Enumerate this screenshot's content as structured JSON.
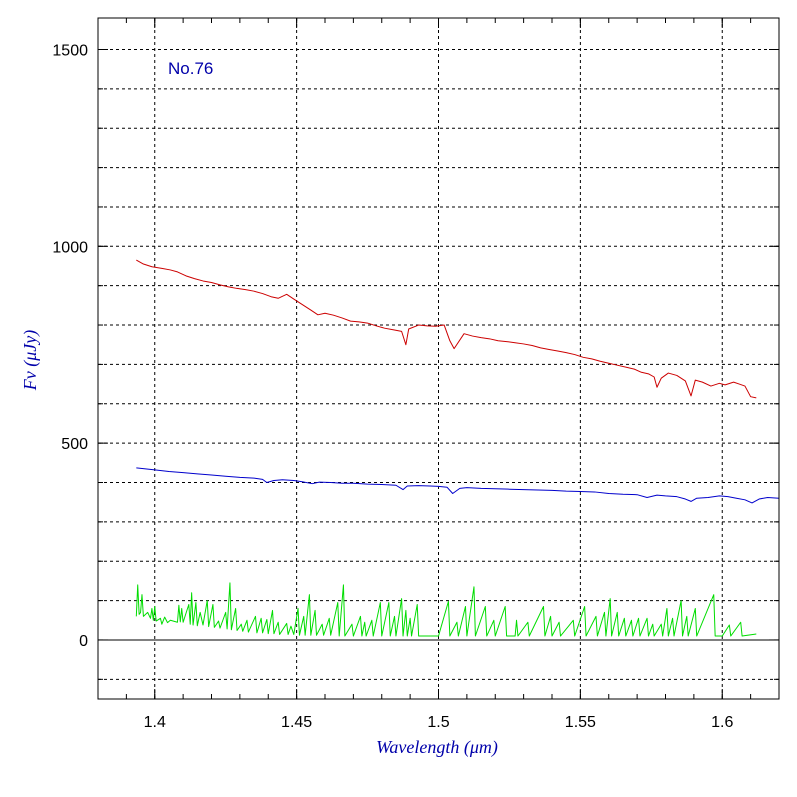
{
  "chart_data": {
    "type": "line",
    "annotation": "No.76",
    "xlabel": "Wavelength (μm)",
    "ylabel": "Fν (μJy)",
    "xlim": [
      1.38,
      1.62
    ],
    "ylim": [
      -150,
      1580
    ],
    "x_ticks": [
      1.4,
      1.45,
      1.5,
      1.55,
      1.6
    ],
    "x_tick_labels": [
      "1.4",
      "1.45",
      "1.5",
      "1.55",
      "1.6"
    ],
    "y_ticks": [
      0,
      500,
      1000,
      1500
    ],
    "y_tick_labels": [
      "0",
      "500",
      "1000",
      "1500"
    ],
    "y_gridlines": [
      -100,
      100,
      200,
      300,
      400,
      600,
      700,
      800,
      900,
      1100,
      1200,
      1300,
      1400,
      1500
    ],
    "grid": true,
    "colors": {
      "observed": "#cc0000",
      "model": "#0000cc",
      "sky": "#00dd00",
      "text_accent": "#0000aa"
    },
    "series": [
      {
        "color": "#cc0000",
        "points": [
          [
            1.3935,
            965
          ],
          [
            1.396,
            955
          ],
          [
            1.399,
            948
          ],
          [
            1.4025,
            944
          ],
          [
            1.4055,
            940
          ],
          [
            1.408,
            935
          ],
          [
            1.411,
            925
          ],
          [
            1.414,
            918
          ],
          [
            1.417,
            912
          ],
          [
            1.42,
            908
          ],
          [
            1.423,
            902
          ],
          [
            1.426,
            897
          ],
          [
            1.429,
            893
          ],
          [
            1.432,
            890
          ],
          [
            1.435,
            886
          ],
          [
            1.438,
            880
          ],
          [
            1.441,
            872
          ],
          [
            1.4435,
            868
          ],
          [
            1.4465,
            878
          ],
          [
            1.449,
            866
          ],
          [
            1.452,
            852
          ],
          [
            1.455,
            838
          ],
          [
            1.4575,
            826
          ],
          [
            1.46,
            830
          ],
          [
            1.463,
            825
          ],
          [
            1.466,
            818
          ],
          [
            1.469,
            810
          ],
          [
            1.472,
            808
          ],
          [
            1.475,
            805
          ],
          [
            1.478,
            798
          ],
          [
            1.481,
            792
          ],
          [
            1.484,
            788
          ],
          [
            1.487,
            784
          ],
          [
            1.4885,
            750
          ],
          [
            1.4895,
            790
          ],
          [
            1.493,
            800
          ],
          [
            1.496,
            798
          ],
          [
            1.499,
            797
          ],
          [
            1.502,
            800
          ],
          [
            1.504,
            760
          ],
          [
            1.5055,
            740
          ],
          [
            1.509,
            778
          ],
          [
            1.512,
            772
          ],
          [
            1.515,
            768
          ],
          [
            1.518,
            765
          ],
          [
            1.521,
            760
          ],
          [
            1.524,
            758
          ],
          [
            1.527,
            755
          ],
          [
            1.53,
            752
          ],
          [
            1.533,
            748
          ],
          [
            1.536,
            742
          ],
          [
            1.539,
            738
          ],
          [
            1.542,
            734
          ],
          [
            1.545,
            730
          ],
          [
            1.548,
            725
          ],
          [
            1.551,
            718
          ],
          [
            1.554,
            714
          ],
          [
            1.557,
            708
          ],
          [
            1.56,
            703
          ],
          [
            1.563,
            698
          ],
          [
            1.566,
            693
          ],
          [
            1.569,
            688
          ],
          [
            1.5715,
            680
          ],
          [
            1.574,
            676
          ],
          [
            1.576,
            668
          ],
          [
            1.577,
            642
          ],
          [
            1.5785,
            665
          ],
          [
            1.581,
            678
          ],
          [
            1.584,
            672
          ],
          [
            1.587,
            658
          ],
          [
            1.589,
            620
          ],
          [
            1.5905,
            660
          ],
          [
            1.593,
            655
          ],
          [
            1.596,
            645
          ],
          [
            1.599,
            652
          ],
          [
            1.601,
            648
          ],
          [
            1.604,
            655
          ],
          [
            1.606,
            650
          ],
          [
            1.608,
            645
          ],
          [
            1.61,
            618
          ],
          [
            1.612,
            615
          ]
        ]
      },
      {
        "color": "#0000cc",
        "points": [
          [
            1.3935,
            437
          ],
          [
            1.4,
            432
          ],
          [
            1.405,
            428
          ],
          [
            1.41,
            425
          ],
          [
            1.415,
            422
          ],
          [
            1.42,
            419
          ],
          [
            1.425,
            416
          ],
          [
            1.43,
            413
          ],
          [
            1.435,
            411
          ],
          [
            1.438,
            408
          ],
          [
            1.4395,
            400
          ],
          [
            1.442,
            405
          ],
          [
            1.445,
            407
          ],
          [
            1.449,
            405
          ],
          [
            1.452,
            402
          ],
          [
            1.4555,
            397
          ],
          [
            1.458,
            401
          ],
          [
            1.462,
            400
          ],
          [
            1.466,
            398
          ],
          [
            1.47,
            398
          ],
          [
            1.475,
            396
          ],
          [
            1.48,
            395
          ],
          [
            1.485,
            393
          ],
          [
            1.4875,
            382
          ],
          [
            1.489,
            391
          ],
          [
            1.493,
            392
          ],
          [
            1.497,
            391
          ],
          [
            1.5,
            390
          ],
          [
            1.503,
            388
          ],
          [
            1.505,
            372
          ],
          [
            1.5075,
            385
          ],
          [
            1.51,
            387
          ],
          [
            1.515,
            385
          ],
          [
            1.52,
            384
          ],
          [
            1.525,
            383
          ],
          [
            1.53,
            382
          ],
          [
            1.535,
            381
          ],
          [
            1.54,
            380
          ],
          [
            1.545,
            378
          ],
          [
            1.55,
            377
          ],
          [
            1.555,
            376
          ],
          [
            1.56,
            372
          ],
          [
            1.565,
            370
          ],
          [
            1.57,
            369
          ],
          [
            1.5735,
            362
          ],
          [
            1.577,
            368
          ],
          [
            1.58,
            366
          ],
          [
            1.584,
            364
          ],
          [
            1.587,
            358
          ],
          [
            1.589,
            352
          ],
          [
            1.591,
            360
          ],
          [
            1.595,
            362
          ],
          [
            1.599,
            366
          ],
          [
            1.602,
            364
          ],
          [
            1.605,
            360
          ],
          [
            1.608,
            356
          ],
          [
            1.6105,
            348
          ],
          [
            1.613,
            358
          ],
          [
            1.616,
            362
          ],
          [
            1.62,
            360
          ]
        ]
      },
      {
        "color": "#00dd00",
        "points": [
          [
            1.3935,
            60
          ],
          [
            1.394,
            140
          ],
          [
            1.3945,
            65
          ],
          [
            1.395,
            70
          ],
          [
            1.3955,
            115
          ],
          [
            1.396,
            60
          ],
          [
            1.3975,
            70
          ],
          [
            1.3985,
            55
          ],
          [
            1.399,
            80
          ],
          [
            1.3995,
            50
          ],
          [
            1.4,
            85
          ],
          [
            1.4005,
            48
          ],
          [
            1.402,
            55
          ],
          [
            1.4025,
            40
          ],
          [
            1.4035,
            58
          ],
          [
            1.4045,
            44
          ],
          [
            1.4055,
            50
          ],
          [
            1.408,
            45
          ],
          [
            1.4085,
            88
          ],
          [
            1.409,
            46
          ],
          [
            1.4095,
            80
          ],
          [
            1.41,
            45
          ],
          [
            1.412,
            90
          ],
          [
            1.4125,
            40
          ],
          [
            1.413,
            120
          ],
          [
            1.4135,
            38
          ],
          [
            1.4145,
            95
          ],
          [
            1.415,
            36
          ],
          [
            1.416,
            70
          ],
          [
            1.417,
            38
          ],
          [
            1.4185,
            100
          ],
          [
            1.419,
            34
          ],
          [
            1.4205,
            90
          ],
          [
            1.421,
            32
          ],
          [
            1.4225,
            48
          ],
          [
            1.423,
            30
          ],
          [
            1.425,
            70
          ],
          [
            1.4255,
            28
          ],
          [
            1.4265,
            145
          ],
          [
            1.427,
            26
          ],
          [
            1.4285,
            80
          ],
          [
            1.429,
            24
          ],
          [
            1.4305,
            40
          ],
          [
            1.431,
            22
          ],
          [
            1.4325,
            50
          ],
          [
            1.433,
            20
          ],
          [
            1.4355,
            60
          ],
          [
            1.436,
            18
          ],
          [
            1.4375,
            55
          ],
          [
            1.438,
            18
          ],
          [
            1.4395,
            52
          ],
          [
            1.44,
            16
          ],
          [
            1.4415,
            75
          ],
          [
            1.442,
            16
          ],
          [
            1.4435,
            45
          ],
          [
            1.444,
            14
          ],
          [
            1.4465,
            42
          ],
          [
            1.447,
            14
          ],
          [
            1.448,
            35
          ],
          [
            1.449,
            14
          ],
          [
            1.4505,
            80
          ],
          [
            1.451,
            12
          ],
          [
            1.4525,
            60
          ],
          [
            1.453,
            12
          ],
          [
            1.4545,
            115
          ],
          [
            1.455,
            12
          ],
          [
            1.4565,
            75
          ],
          [
            1.457,
            12
          ],
          [
            1.459,
            40
          ],
          [
            1.4595,
            12
          ],
          [
            1.4615,
            55
          ],
          [
            1.462,
            12
          ],
          [
            1.4645,
            95
          ],
          [
            1.465,
            10
          ],
          [
            1.4665,
            140
          ],
          [
            1.467,
            10
          ],
          [
            1.4695,
            40
          ],
          [
            1.47,
            10
          ],
          [
            1.4725,
            60
          ],
          [
            1.473,
            10
          ],
          [
            1.474,
            45
          ],
          [
            1.4745,
            10
          ],
          [
            1.4765,
            50
          ],
          [
            1.477,
            10
          ],
          [
            1.4795,
            95
          ],
          [
            1.48,
            10
          ],
          [
            1.4825,
            95
          ],
          [
            1.483,
            10
          ],
          [
            1.4845,
            60
          ],
          [
            1.485,
            10
          ],
          [
            1.487,
            105
          ],
          [
            1.4875,
            10
          ],
          [
            1.4885,
            75
          ],
          [
            1.489,
            10
          ],
          [
            1.49,
            55
          ],
          [
            1.4905,
            10
          ],
          [
            1.4925,
            90
          ],
          [
            1.493,
            10
          ],
          [
            1.5,
            10
          ],
          [
            1.5035,
            98
          ],
          [
            1.504,
            10
          ],
          [
            1.5065,
            45
          ],
          [
            1.507,
            10
          ],
          [
            1.5095,
            85
          ],
          [
            1.51,
            10
          ],
          [
            1.5125,
            135
          ],
          [
            1.513,
            10
          ],
          [
            1.5165,
            85
          ],
          [
            1.517,
            10
          ],
          [
            1.5195,
            50
          ],
          [
            1.52,
            10
          ],
          [
            1.5235,
            85
          ],
          [
            1.524,
            10
          ],
          [
            1.527,
            10
          ],
          [
            1.5275,
            50
          ],
          [
            1.528,
            10
          ],
          [
            1.5315,
            45
          ],
          [
            1.532,
            10
          ],
          [
            1.537,
            85
          ],
          [
            1.5375,
            10
          ],
          [
            1.5395,
            60
          ],
          [
            1.54,
            10
          ],
          [
            1.5425,
            45
          ],
          [
            1.543,
            10
          ],
          [
            1.5475,
            50
          ],
          [
            1.548,
            10
          ],
          [
            1.5515,
            85
          ],
          [
            1.552,
            10
          ],
          [
            1.5555,
            60
          ],
          [
            1.556,
            10
          ],
          [
            1.5585,
            70
          ],
          [
            1.559,
            10
          ],
          [
            1.5605,
            105
          ],
          [
            1.561,
            10
          ],
          [
            1.563,
            70
          ],
          [
            1.5635,
            10
          ],
          [
            1.5655,
            55
          ],
          [
            1.566,
            10
          ],
          [
            1.568,
            50
          ],
          [
            1.5685,
            10
          ],
          [
            1.5705,
            55
          ],
          [
            1.571,
            10
          ],
          [
            1.5735,
            55
          ],
          [
            1.574,
            10
          ],
          [
            1.5755,
            40
          ],
          [
            1.576,
            10
          ],
          [
            1.5785,
            40
          ],
          [
            1.579,
            10
          ],
          [
            1.5805,
            80
          ],
          [
            1.581,
            10
          ],
          [
            1.5825,
            55
          ],
          [
            1.583,
            10
          ],
          [
            1.5855,
            100
          ],
          [
            1.586,
            10
          ],
          [
            1.5875,
            60
          ],
          [
            1.588,
            10
          ],
          [
            1.5905,
            80
          ],
          [
            1.591,
            10
          ],
          [
            1.597,
            115
          ],
          [
            1.5975,
            10
          ],
          [
            1.6,
            10
          ],
          [
            1.6025,
            38
          ],
          [
            1.603,
            10
          ],
          [
            1.6065,
            45
          ],
          [
            1.607,
            10
          ],
          [
            1.612,
            15
          ]
        ]
      }
    ]
  }
}
